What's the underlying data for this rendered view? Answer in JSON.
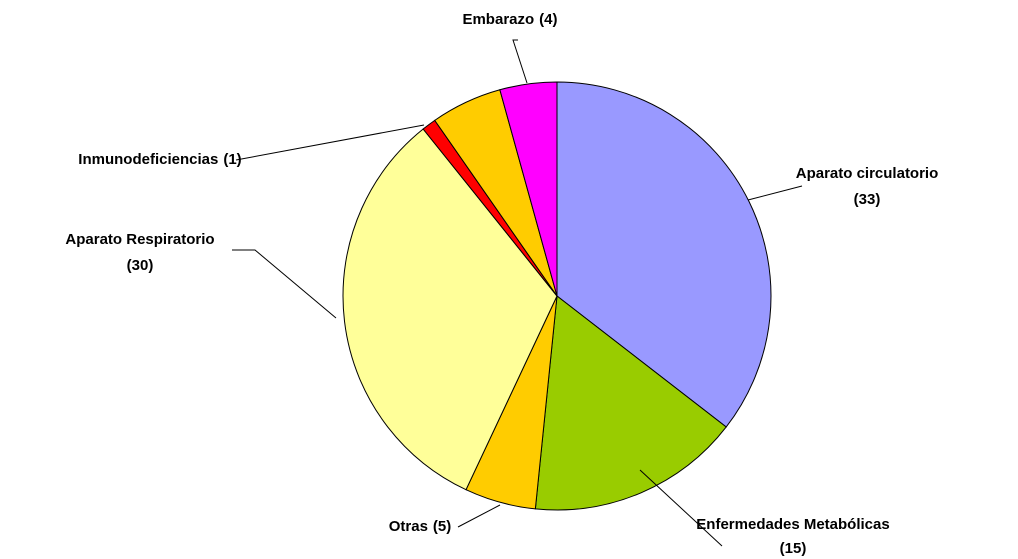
{
  "chart_data": {
    "type": "pie",
    "categories": [
      "Aparato circulatorio",
      "Enfermedades Metabólicas",
      "Otras",
      "Aparato Respiratorio",
      "Inmunodeficiencias",
      null,
      "Embarazo"
    ],
    "values": [
      33,
      15,
      5,
      30,
      1,
      5,
      4
    ],
    "value_labels": [
      "(33)",
      "(15)",
      "(5)",
      "(30)",
      "(1)",
      null,
      "(4)"
    ],
    "colors": [
      "#9999ff",
      "#99cc00",
      "#ffcc00",
      "#ffff99",
      "#ff0000",
      "#ffcc00",
      "#ff00ff"
    ]
  }
}
